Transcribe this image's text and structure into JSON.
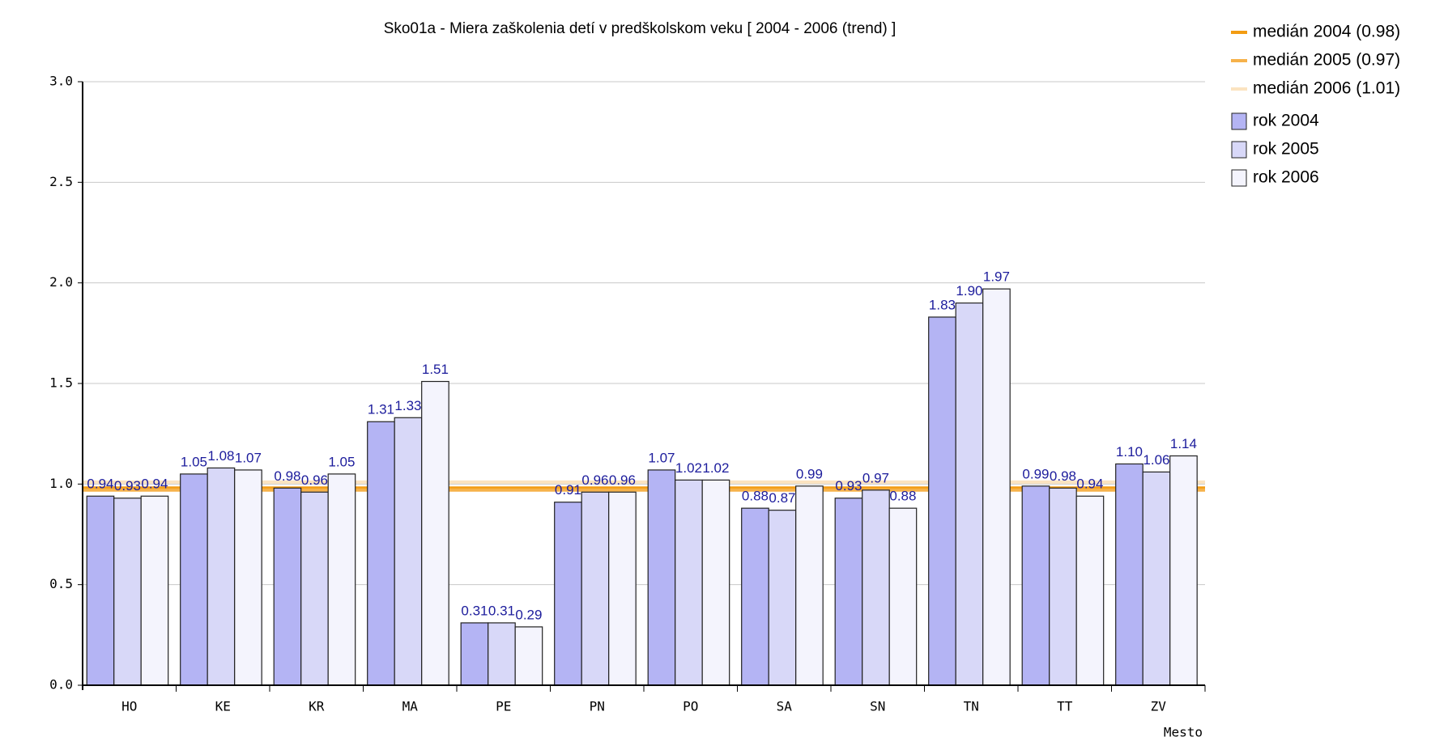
{
  "chart_data": {
    "type": "bar",
    "title": "Sko01a - Miera zaškolenia detí v predškolskom veku [ 2004 - 2006 (trend) ]",
    "x_label": "Mesto",
    "categories": [
      "HO",
      "KE",
      "KR",
      "MA",
      "PE",
      "PN",
      "PO",
      "SA",
      "SN",
      "TN",
      "TT",
      "ZV"
    ],
    "series": [
      {
        "name": "rok 2004",
        "color": "#b4b4f4",
        "values": [
          0.94,
          1.05,
          0.98,
          1.31,
          0.31,
          0.91,
          1.07,
          0.88,
          0.93,
          1.83,
          0.99,
          1.1
        ],
        "value_labels": [
          "0.94",
          "1.05",
          "0.98",
          "1.31",
          "0.31",
          "0.91",
          "1.07",
          "0.88",
          "0.93",
          "1.83",
          "0.99",
          "1.10"
        ]
      },
      {
        "name": "rok 2005",
        "color": "#d8d8f8",
        "values": [
          0.93,
          1.08,
          0.96,
          1.33,
          0.31,
          0.96,
          1.02,
          0.87,
          0.97,
          1.9,
          0.98,
          1.06
        ],
        "value_labels": [
          "0.93",
          "1.08",
          "0.96",
          "1.33",
          "0.31",
          "0.96",
          "1.02",
          "0.87",
          "0.97",
          "1.90",
          "0.98",
          "1.06"
        ]
      },
      {
        "name": "rok 2006",
        "color": "#f4f4fd",
        "values": [
          0.94,
          1.07,
          1.05,
          1.51,
          0.29,
          0.96,
          1.02,
          0.99,
          0.88,
          1.97,
          0.94,
          1.14
        ],
        "value_labels": [
          "0.94",
          "1.07",
          "1.05",
          "1.51",
          "0.29",
          "0.96",
          "1.02",
          "0.99",
          "0.88",
          "1.97",
          "0.94",
          "1.14"
        ]
      }
    ],
    "reference_lines": [
      {
        "name": "medián 2004 (0.98)",
        "value": 0.98,
        "color": "#f39c12"
      },
      {
        "name": "medián 2005 (0.97)",
        "value": 0.97,
        "color": "#f6b24a"
      },
      {
        "name": "medián 2006 (1.01)",
        "value": 1.01,
        "color": "#fbe3c0"
      }
    ],
    "ylim": [
      0,
      3
    ],
    "yticks": [
      {
        "value": 0,
        "label": "0.0"
      },
      0.5,
      {
        "value": 1,
        "label": "1.0"
      },
      1.5,
      {
        "value": 2,
        "label": "2.0"
      },
      2.5,
      {
        "value": 3,
        "label": "3.0"
      }
    ],
    "grid": true
  }
}
